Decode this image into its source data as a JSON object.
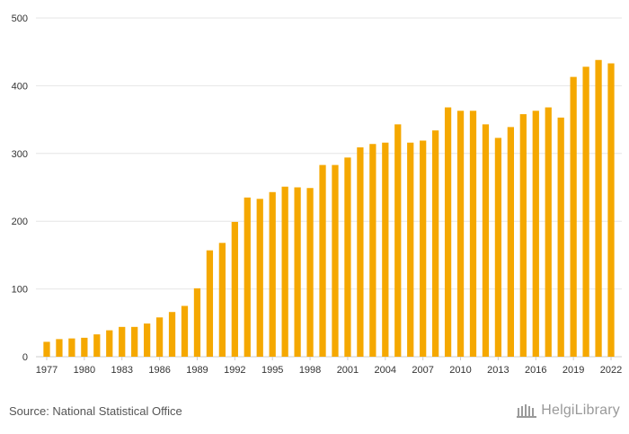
{
  "chart_data": {
    "type": "bar",
    "categories": [
      "1977",
      "1978",
      "1979",
      "1980",
      "1981",
      "1982",
      "1983",
      "1984",
      "1985",
      "1986",
      "1987",
      "1988",
      "1989",
      "1990",
      "1991",
      "1992",
      "1993",
      "1994",
      "1995",
      "1996",
      "1997",
      "1998",
      "1999",
      "2000",
      "2001",
      "2002",
      "2003",
      "2004",
      "2005",
      "2006",
      "2007",
      "2008",
      "2009",
      "2010",
      "2011",
      "2012",
      "2013",
      "2014",
      "2015",
      "2016",
      "2017",
      "2018",
      "2019",
      "2020",
      "2021",
      "2022"
    ],
    "values": [
      22,
      26,
      27,
      28,
      33,
      39,
      44,
      44,
      49,
      58,
      66,
      75,
      101,
      157,
      168,
      199,
      235,
      233,
      243,
      251,
      250,
      249,
      283,
      283,
      294,
      309,
      314,
      316,
      343,
      316,
      319,
      334,
      368,
      363,
      363,
      343,
      323,
      339,
      358,
      363,
      368,
      353,
      413,
      428,
      438,
      433
    ],
    "x_tick_labels": [
      "1977",
      "1980",
      "1983",
      "1986",
      "1989",
      "1992",
      "1995",
      "1998",
      "2001",
      "2004",
      "2007",
      "2010",
      "2013",
      "2016",
      "2019",
      "2022"
    ],
    "y_ticks": [
      0,
      100,
      200,
      300,
      400,
      500
    ],
    "ylim": [
      0,
      500
    ],
    "title": "",
    "xlabel": "",
    "ylabel": "",
    "grid": "horizontal",
    "bar_color": "#f5a800"
  },
  "footer": {
    "source": "Source: National Statistical Office",
    "logo_text": "HelgiLibrary",
    "logo_icon": "library-building-icon"
  },
  "colors": {
    "grid": "#e6e6e6",
    "axis_text": "#333333",
    "footer_text": "#555555",
    "logo": "#9a9a9a"
  }
}
